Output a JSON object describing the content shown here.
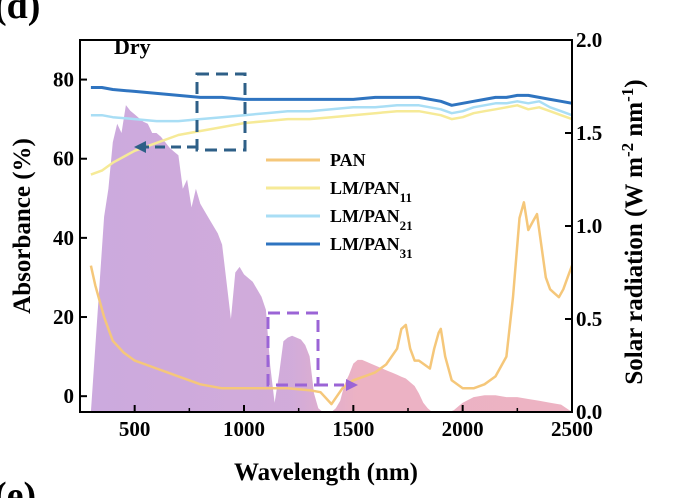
{
  "panel_label": "(d)",
  "next_panel_label": "(e)",
  "chart_data": {
    "type": "line",
    "annotation": "Dry",
    "xlabel": "Wavelength (nm)",
    "ylabel_left": "Absorbance (%)",
    "ylabel_right": "Solar radiation (W m",
    "ylabel_right_sup1": "-2",
    "ylabel_right_mid": " nm",
    "ylabel_right_sup2": "-1",
    "ylabel_right_end": ")",
    "xlim": [
      250,
      2500
    ],
    "ylim_left": [
      -4,
      90
    ],
    "ylim_right": [
      0,
      2.0
    ],
    "x_ticks": [
      500,
      1000,
      1500,
      2000,
      2500
    ],
    "x_tick_labels": [
      "500",
      "1000",
      "1500",
      "2000",
      "2500"
    ],
    "y_ticks_left": [
      0,
      20,
      40,
      60,
      80
    ],
    "y_tick_labels_left": [
      "0",
      "20",
      "40",
      "60",
      "80"
    ],
    "y_ticks_right": [
      0.0,
      0.5,
      1.0,
      1.5,
      2.0
    ],
    "y_tick_labels_right": [
      "0.0",
      "0.5",
      "1.0",
      "1.5",
      "2.0"
    ],
    "legend_position": "center-right",
    "series": [
      {
        "name": "PAN",
        "name_sub": "",
        "color": "#f5c77a",
        "x": [
          300,
          320,
          340,
          360,
          380,
          400,
          450,
          500,
          550,
          600,
          650,
          700,
          800,
          900,
          1000,
          1100,
          1200,
          1300,
          1350,
          1400,
          1450,
          1500,
          1550,
          1600,
          1650,
          1700,
          1720,
          1740,
          1760,
          1780,
          1800,
          1850,
          1870,
          1890,
          1900,
          1920,
          1950,
          2000,
          2050,
          2100,
          2150,
          2200,
          2230,
          2260,
          2280,
          2300,
          2320,
          2340,
          2360,
          2380,
          2400,
          2420,
          2440,
          2460,
          2480,
          2500
        ],
        "y": [
          33,
          28,
          24,
          20,
          17,
          14,
          11,
          9,
          8,
          7,
          6,
          5,
          3,
          2,
          2,
          2,
          2,
          1.5,
          1,
          -2,
          2,
          4,
          5,
          6,
          8,
          12,
          17,
          18,
          12,
          9,
          9,
          7,
          12,
          16,
          17,
          10,
          4,
          2,
          2,
          3,
          5,
          10,
          25,
          45,
          49,
          42,
          44,
          46,
          38,
          30,
          27,
          26,
          25,
          27,
          30,
          33
        ]
      },
      {
        "name": "LM/PAN",
        "name_sub": "11",
        "color": "#f6ea97",
        "x": [
          300,
          350,
          400,
          500,
          600,
          700,
          800,
          900,
          1000,
          1100,
          1200,
          1300,
          1400,
          1500,
          1600,
          1700,
          1800,
          1900,
          1950,
          2000,
          2050,
          2100,
          2150,
          2200,
          2250,
          2300,
          2350,
          2400,
          2450,
          2500
        ],
        "y": [
          56,
          57,
          59,
          62,
          64,
          66,
          67,
          68,
          69,
          69.5,
          70,
          70,
          70.5,
          71,
          71.5,
          72,
          72,
          71,
          70,
          70.5,
          71.5,
          72,
          72.5,
          73,
          73.5,
          72.5,
          73,
          72,
          71,
          70
        ]
      },
      {
        "name": "LM/PAN",
        "name_sub": "21",
        "color": "#a9def5",
        "x": [
          300,
          350,
          400,
          500,
          600,
          700,
          800,
          900,
          1000,
          1100,
          1200,
          1300,
          1400,
          1500,
          1600,
          1700,
          1800,
          1900,
          1950,
          2000,
          2050,
          2100,
          2150,
          2200,
          2250,
          2300,
          2350,
          2400,
          2450,
          2500
        ],
        "y": [
          71,
          71,
          70.5,
          70,
          69.5,
          69.5,
          70,
          70.5,
          71,
          71.5,
          72,
          72,
          72.5,
          73,
          73,
          73.5,
          73.5,
          72.5,
          71.5,
          72,
          73,
          73.5,
          74,
          74,
          74.5,
          74,
          74.5,
          73,
          72,
          71
        ]
      },
      {
        "name": "LM/PAN",
        "name_sub": "31",
        "color": "#2f74c0",
        "x": [
          300,
          350,
          400,
          500,
          600,
          700,
          800,
          900,
          1000,
          1100,
          1200,
          1300,
          1400,
          1500,
          1600,
          1700,
          1800,
          1900,
          1950,
          2000,
          2050,
          2100,
          2150,
          2200,
          2250,
          2300,
          2350,
          2400,
          2450,
          2500
        ],
        "y": [
          78,
          78,
          77.5,
          77,
          76.5,
          76,
          75.5,
          75.5,
          75,
          75,
          75,
          75,
          75,
          75,
          75.5,
          75.5,
          75.5,
          74.5,
          73.5,
          74,
          74.5,
          75,
          75.5,
          75.5,
          76,
          76,
          75.5,
          75,
          74.5,
          74
        ]
      },
      {
        "name": "Solar radiation",
        "color": "#c9a5dc",
        "x": [
          300,
          320,
          340,
          360,
          380,
          400,
          420,
          440,
          460,
          480,
          500,
          520,
          540,
          560,
          580,
          600,
          620,
          640,
          660,
          680,
          700,
          720,
          740,
          760,
          780,
          800,
          820,
          840,
          860,
          880,
          900,
          920,
          940,
          960,
          980,
          1000,
          1020,
          1040,
          1060,
          1080,
          1100,
          1120,
          1140,
          1160,
          1180,
          1200,
          1220,
          1240,
          1260,
          1280,
          1300,
          1320,
          1340,
          1360,
          1380,
          1400,
          1420,
          1440,
          1460,
          1480,
          1500,
          1520,
          1540,
          1560,
          1580,
          1600,
          1620,
          1640,
          1660,
          1680,
          1700,
          1720,
          1740,
          1760,
          1780,
          1800,
          1820,
          1840,
          1860,
          1880,
          1900,
          1920,
          1940,
          1960,
          1980,
          2000,
          2050,
          2100,
          2150,
          2200,
          2250,
          2300,
          2350,
          2400,
          2450,
          2500
        ],
        "y": [
          0.0,
          0.35,
          0.7,
          1.05,
          1.2,
          1.45,
          1.55,
          1.5,
          1.65,
          1.62,
          1.6,
          1.58,
          1.56,
          1.55,
          1.5,
          1.5,
          1.48,
          1.45,
          1.42,
          1.4,
          1.38,
          1.2,
          1.25,
          1.1,
          1.2,
          1.12,
          1.08,
          1.04,
          1.0,
          0.96,
          0.9,
          0.7,
          0.5,
          0.75,
          0.78,
          0.74,
          0.72,
          0.7,
          0.66,
          0.62,
          0.55,
          0.25,
          0.05,
          0.2,
          0.38,
          0.4,
          0.41,
          0.4,
          0.39,
          0.36,
          0.3,
          0.1,
          0.02,
          0.0,
          0.0,
          0.0,
          0.02,
          0.06,
          0.15,
          0.2,
          0.26,
          0.28,
          0.28,
          0.27,
          0.26,
          0.25,
          0.24,
          0.23,
          0.22,
          0.21,
          0.2,
          0.19,
          0.18,
          0.16,
          0.14,
          0.1,
          0.05,
          0.02,
          0.0,
          0.0,
          0.0,
          0.0,
          0.0,
          0.01,
          0.03,
          0.05,
          0.08,
          0.09,
          0.09,
          0.08,
          0.08,
          0.07,
          0.06,
          0.05,
          0.04,
          0.0
        ]
      }
    ],
    "solar_palette": [
      "#c9a5dc",
      "#e9a3b8"
    ],
    "inset_box_blue_color": "#2e5f87",
    "inset_box_purple_color": "#9b64d6"
  }
}
